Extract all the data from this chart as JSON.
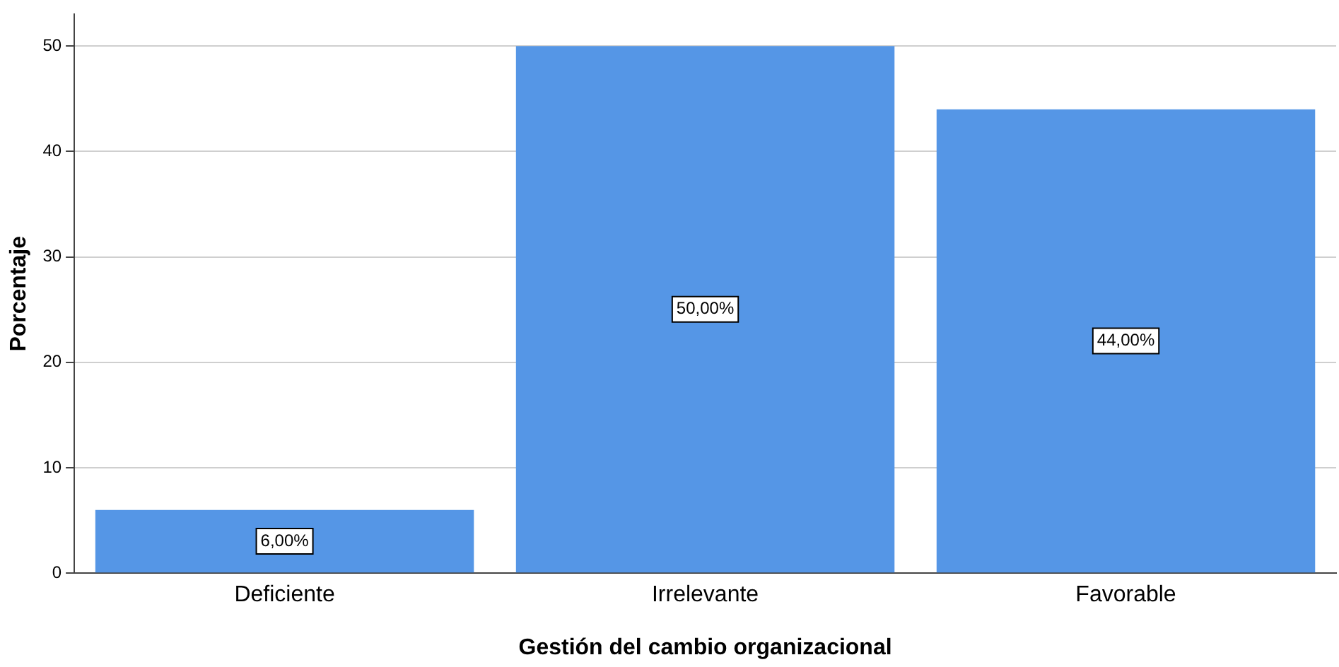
{
  "chart_data": {
    "type": "bar",
    "xlabel": "Gestión del cambio organizacional",
    "ylabel": "Porcentaje",
    "categories": [
      "Deficiente",
      "Irrelevante",
      "Favorable"
    ],
    "values": [
      6,
      50,
      44
    ],
    "value_labels": [
      "6,00%",
      "50,00%",
      "44,00%"
    ],
    "color": "#5596e6",
    "ylim": [
      0,
      53
    ],
    "yticks": [
      0,
      10,
      20,
      30,
      40,
      50
    ],
    "grid": "y",
    "legend": false
  }
}
